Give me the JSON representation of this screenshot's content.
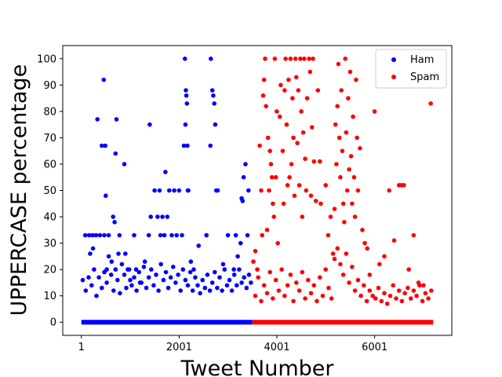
{
  "chart_data": {
    "type": "scatter",
    "xlabel": "Tweet Number",
    "ylabel": "UPPERCASE percentage",
    "xlim": [
      -380,
      7580
    ],
    "ylim": [
      -5,
      105
    ],
    "xticks": [
      1,
      2001,
      4001,
      6001
    ],
    "yticks": [
      0,
      10,
      20,
      30,
      40,
      50,
      60,
      70,
      80,
      90,
      100
    ],
    "grid": false,
    "legend_position": "top-right",
    "series": [
      {
        "name": "Ham",
        "color": "#0000ff",
        "x_range": [
          1,
          3500
        ],
        "baseline_value": 0,
        "points": [
          [
            80,
            33
          ],
          [
            160,
            33
          ],
          [
            230,
            33
          ],
          [
            180,
            26
          ],
          [
            240,
            28
          ],
          [
            300,
            33
          ],
          [
            330,
            77
          ],
          [
            380,
            33
          ],
          [
            420,
            67
          ],
          [
            460,
            92
          ],
          [
            470,
            33
          ],
          [
            490,
            67
          ],
          [
            500,
            48
          ],
          [
            520,
            20
          ],
          [
            560,
            33
          ],
          [
            620,
            23
          ],
          [
            650,
            40
          ],
          [
            680,
            38
          ],
          [
            700,
            64
          ],
          [
            720,
            77
          ],
          [
            760,
            26
          ],
          [
            780,
            33
          ],
          [
            880,
            60
          ],
          [
            900,
            26
          ],
          [
            950,
            20
          ],
          [
            1000,
            16
          ],
          [
            1080,
            33
          ],
          [
            1120,
            20
          ],
          [
            1200,
            15
          ],
          [
            1300,
            23
          ],
          [
            1380,
            33
          ],
          [
            1400,
            75
          ],
          [
            1420,
            40
          ],
          [
            1500,
            50
          ],
          [
            1560,
            40
          ],
          [
            1600,
            50
          ],
          [
            1620,
            33
          ],
          [
            1660,
            40
          ],
          [
            1700,
            33
          ],
          [
            1720,
            57
          ],
          [
            1760,
            40
          ],
          [
            1800,
            50
          ],
          [
            1850,
            33
          ],
          [
            1900,
            50
          ],
          [
            1950,
            33
          ],
          [
            2000,
            50
          ],
          [
            2060,
            33
          ],
          [
            2100,
            67
          ],
          [
            2120,
            100
          ],
          [
            2130,
            75
          ],
          [
            2140,
            88
          ],
          [
            2150,
            86
          ],
          [
            2160,
            83
          ],
          [
            2170,
            67
          ],
          [
            2180,
            50
          ],
          [
            2190,
            50
          ],
          [
            2240,
            23
          ],
          [
            2300,
            20
          ],
          [
            2400,
            29
          ],
          [
            2560,
            33
          ],
          [
            2640,
            67
          ],
          [
            2650,
            100
          ],
          [
            2680,
            88
          ],
          [
            2700,
            86
          ],
          [
            2720,
            83
          ],
          [
            2740,
            75
          ],
          [
            2760,
            50
          ],
          [
            2790,
            50
          ],
          [
            2900,
            22
          ],
          [
            3000,
            33
          ],
          [
            3120,
            20
          ],
          [
            3160,
            33
          ],
          [
            3200,
            25
          ],
          [
            3260,
            30
          ],
          [
            3280,
            47
          ],
          [
            3300,
            46
          ],
          [
            3320,
            55
          ],
          [
            3360,
            60
          ],
          [
            3400,
            33
          ],
          [
            3420,
            50
          ],
          [
            30,
            16
          ],
          [
            90,
            12
          ],
          [
            150,
            17
          ],
          [
            210,
            14
          ],
          [
            260,
            20
          ],
          [
            310,
            10
          ],
          [
            360,
            17
          ],
          [
            420,
            13
          ],
          [
            470,
            19
          ],
          [
            520,
            15
          ],
          [
            560,
            25
          ],
          [
            610,
            18
          ],
          [
            660,
            12
          ],
          [
            700,
            20
          ],
          [
            740,
            16
          ],
          [
            790,
            11
          ],
          [
            830,
            22
          ],
          [
            880,
            18
          ],
          [
            920,
            13
          ],
          [
            980,
            20
          ],
          [
            1030,
            14
          ],
          [
            1080,
            17
          ],
          [
            1130,
            12
          ],
          [
            1180,
            19
          ],
          [
            1230,
            15
          ],
          [
            1280,
            21
          ],
          [
            1330,
            13
          ],
          [
            1380,
            17
          ],
          [
            1430,
            20
          ],
          [
            1480,
            14
          ],
          [
            1530,
            18
          ],
          [
            1580,
            12
          ],
          [
            1630,
            22
          ],
          [
            1680,
            16
          ],
          [
            1730,
            19
          ],
          [
            1780,
            13
          ],
          [
            1830,
            17
          ],
          [
            1880,
            21
          ],
          [
            1930,
            15
          ],
          [
            1980,
            18
          ],
          [
            2030,
            12
          ],
          [
            2080,
            20
          ],
          [
            2130,
            16
          ],
          [
            2180,
            14
          ],
          [
            2230,
            19
          ],
          [
            2280,
            12
          ],
          [
            2330,
            17
          ],
          [
            2380,
            14
          ],
          [
            2430,
            11
          ],
          [
            2480,
            16
          ],
          [
            2530,
            13
          ],
          [
            2580,
            18
          ],
          [
            2630,
            12
          ],
          [
            2680,
            15
          ],
          [
            2730,
            19
          ],
          [
            2780,
            13
          ],
          [
            2830,
            17
          ],
          [
            2880,
            12
          ],
          [
            2930,
            20
          ],
          [
            2980,
            14
          ],
          [
            3030,
            16
          ],
          [
            3080,
            12
          ],
          [
            3130,
            18
          ],
          [
            3180,
            14
          ],
          [
            3230,
            20
          ],
          [
            3280,
            15
          ],
          [
            3330,
            17
          ],
          [
            3380,
            13
          ],
          [
            3430,
            18
          ],
          [
            3470,
            15
          ]
        ]
      },
      {
        "name": "Spam",
        "color": "#ff0000",
        "x_range": [
          3500,
          7200
        ],
        "baseline_value": 0,
        "points": [
          [
            3520,
            23
          ],
          [
            3560,
            27
          ],
          [
            3600,
            20
          ],
          [
            3650,
            67
          ],
          [
            3680,
            50
          ],
          [
            3700,
            33
          ],
          [
            3720,
            86
          ],
          [
            3740,
            92
          ],
          [
            3760,
            100
          ],
          [
            3780,
            82
          ],
          [
            3800,
            35
          ],
          [
            3820,
            70
          ],
          [
            3840,
            50
          ],
          [
            3860,
            65
          ],
          [
            3880,
            60
          ],
          [
            3900,
            55
          ],
          [
            3920,
            45
          ],
          [
            3940,
            40
          ],
          [
            3960,
            100
          ],
          [
            3980,
            55
          ],
          [
            4000,
            80
          ],
          [
            4020,
            30
          ],
          [
            4060,
            78
          ],
          [
            4080,
            90
          ],
          [
            4120,
            65
          ],
          [
            4140,
            45
          ],
          [
            4160,
            88
          ],
          [
            4180,
            100
          ],
          [
            4200,
            75
          ],
          [
            4220,
            52
          ],
          [
            4240,
            92
          ],
          [
            4260,
            55
          ],
          [
            4280,
            100
          ],
          [
            4300,
            60
          ],
          [
            4320,
            85
          ],
          [
            4340,
            70
          ],
          [
            4360,
            48
          ],
          [
            4380,
            100
          ],
          [
            4400,
            93
          ],
          [
            4420,
            68
          ],
          [
            4440,
            88
          ],
          [
            4460,
            52
          ],
          [
            4480,
            100
          ],
          [
            4500,
            80
          ],
          [
            4520,
            40
          ],
          [
            4540,
            72
          ],
          [
            4560,
            100
          ],
          [
            4580,
            62
          ],
          [
            4600,
            50
          ],
          [
            4620,
            85
          ],
          [
            4660,
            100
          ],
          [
            4680,
            95
          ],
          [
            4700,
            48
          ],
          [
            4720,
            74
          ],
          [
            4740,
            100
          ],
          [
            4760,
            61
          ],
          [
            4800,
            46
          ],
          [
            4840,
            88
          ],
          [
            4880,
            61
          ],
          [
            4900,
            45
          ],
          [
            5000,
            52
          ],
          [
            5050,
            33
          ],
          [
            5100,
            40
          ],
          [
            5150,
            26
          ],
          [
            5180,
            43
          ],
          [
            5200,
            75
          ],
          [
            5220,
            60
          ],
          [
            5240,
            82
          ],
          [
            5260,
            98
          ],
          [
            5280,
            70
          ],
          [
            5300,
            55
          ],
          [
            5320,
            88
          ],
          [
            5340,
            65
          ],
          [
            5360,
            45
          ],
          [
            5380,
            38
          ],
          [
            5400,
            100
          ],
          [
            5420,
            72
          ],
          [
            5440,
            50
          ],
          [
            5460,
            85
          ],
          [
            5480,
            58
          ],
          [
            5500,
            95
          ],
          [
            5520,
            63
          ],
          [
            5540,
            45
          ],
          [
            5560,
            78
          ],
          [
            5580,
            55
          ],
          [
            5600,
            40
          ],
          [
            5620,
            92
          ],
          [
            5640,
            70
          ],
          [
            5660,
            50
          ],
          [
            5700,
            66
          ],
          [
            5750,
            35
          ],
          [
            5800,
            30
          ],
          [
            5850,
            28
          ],
          [
            5900,
            18
          ],
          [
            6000,
            80
          ],
          [
            6100,
            22
          ],
          [
            6200,
            25
          ],
          [
            6300,
            50
          ],
          [
            6400,
            31
          ],
          [
            6500,
            52
          ],
          [
            6550,
            52
          ],
          [
            6600,
            52
          ],
          [
            6700,
            20
          ],
          [
            6800,
            33
          ],
          [
            6900,
            15
          ],
          [
            7000,
            14
          ],
          [
            7150,
            83
          ],
          [
            3560,
            10
          ],
          [
            3620,
            17
          ],
          [
            3680,
            8
          ],
          [
            3740,
            14
          ],
          [
            3800,
            11
          ],
          [
            3860,
            19
          ],
          [
            3920,
            9
          ],
          [
            3980,
            16
          ],
          [
            4040,
            12
          ],
          [
            4100,
            20
          ],
          [
            4160,
            10
          ],
          [
            4220,
            14
          ],
          [
            4280,
            18
          ],
          [
            4340,
            8
          ],
          [
            4400,
            15
          ],
          [
            4460,
            12
          ],
          [
            4520,
            19
          ],
          [
            4580,
            9
          ],
          [
            4640,
            16
          ],
          [
            4700,
            11
          ],
          [
            4760,
            14
          ],
          [
            4820,
            8
          ],
          [
            4880,
            17
          ],
          [
            4940,
            10
          ],
          [
            5000,
            20
          ],
          [
            5060,
            13
          ],
          [
            5120,
            9
          ],
          [
            5180,
            24
          ],
          [
            5240,
            28
          ],
          [
            5300,
            22
          ],
          [
            5360,
            18
          ],
          [
            5420,
            26
          ],
          [
            5480,
            15
          ],
          [
            5540,
            21
          ],
          [
            5600,
            12
          ],
          [
            5660,
            16
          ],
          [
            5720,
            10
          ],
          [
            5780,
            14
          ],
          [
            5840,
            8
          ],
          [
            5900,
            12
          ],
          [
            5960,
            10
          ],
          [
            6020,
            9
          ],
          [
            6080,
            13
          ],
          [
            6140,
            8
          ],
          [
            6200,
            11
          ],
          [
            6260,
            7
          ],
          [
            6320,
            10
          ],
          [
            6380,
            14
          ],
          [
            6440,
            9
          ],
          [
            6500,
            12
          ],
          [
            6560,
            8
          ],
          [
            6620,
            11
          ],
          [
            6680,
            13
          ],
          [
            6740,
            9
          ],
          [
            6800,
            12
          ],
          [
            6860,
            10
          ],
          [
            6920,
            14
          ],
          [
            6980,
            8
          ],
          [
            7040,
            11
          ],
          [
            7100,
            9
          ],
          [
            7160,
            12
          ]
        ]
      }
    ]
  }
}
